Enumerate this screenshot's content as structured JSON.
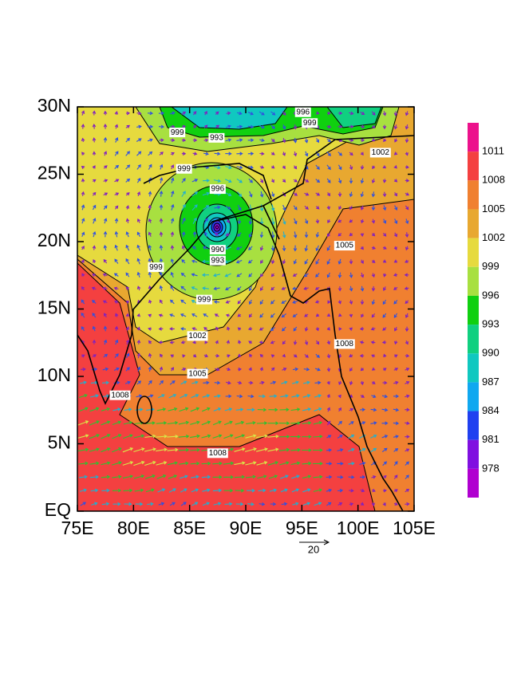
{
  "map": {
    "xlim": [
      75,
      105
    ],
    "ylim": [
      0,
      30
    ],
    "xticks": [
      {
        "value": 75,
        "label": "75E"
      },
      {
        "value": 80,
        "label": "80E"
      },
      {
        "value": 85,
        "label": "85E"
      },
      {
        "value": 90,
        "label": "90E"
      },
      {
        "value": 95,
        "label": "95E"
      },
      {
        "value": 100,
        "label": "100E"
      },
      {
        "value": 105,
        "label": "105E"
      }
    ],
    "yticks": [
      {
        "value": 0,
        "label": "EQ"
      },
      {
        "value": 5,
        "label": "5N"
      },
      {
        "value": 10,
        "label": "10N"
      },
      {
        "value": 15,
        "label": "15N"
      },
      {
        "value": 20,
        "label": "20N"
      },
      {
        "value": 25,
        "label": "25N"
      },
      {
        "value": 30,
        "label": "30N"
      }
    ],
    "colorbar": {
      "levels": [
        1011,
        1008,
        1005,
        1002,
        999,
        996,
        993,
        990,
        987,
        984,
        981,
        978
      ],
      "colors": [
        "#ec128c",
        "#f44040",
        "#f08030",
        "#e8a830",
        "#e6da3e",
        "#a8e040",
        "#10d010",
        "#10d080",
        "#10c8c0",
        "#10a8f0",
        "#2040f0",
        "#8010e0",
        "#b000d0"
      ]
    },
    "contour_labels": [
      {
        "value": 996,
        "lon": 95.1,
        "lat": 29.6
      },
      {
        "value": 999,
        "lon": 95.7,
        "lat": 28.8
      },
      {
        "value": 999,
        "lon": 83.9,
        "lat": 28.1
      },
      {
        "value": 993,
        "lon": 87.4,
        "lat": 27.7
      },
      {
        "value": 999,
        "lon": 84.5,
        "lat": 25.4
      },
      {
        "value": 1002,
        "lon": 102.0,
        "lat": 26.6
      },
      {
        "value": 996,
        "lon": 87.5,
        "lat": 23.9
      },
      {
        "value": 990,
        "lon": 87.5,
        "lat": 19.4
      },
      {
        "value": 993,
        "lon": 87.5,
        "lat": 18.6
      },
      {
        "value": 999,
        "lon": 82.0,
        "lat": 18.1
      },
      {
        "value": 1005,
        "lon": 98.8,
        "lat": 19.7
      },
      {
        "value": 999,
        "lon": 86.3,
        "lat": 15.7
      },
      {
        "value": 1002,
        "lon": 85.7,
        "lat": 13.0
      },
      {
        "value": 1008,
        "lon": 98.8,
        "lat": 12.4
      },
      {
        "value": 1005,
        "lon": 85.7,
        "lat": 10.2
      },
      {
        "value": 1008,
        "lon": 78.8,
        "lat": 8.6
      },
      {
        "value": 1008,
        "lon": 87.5,
        "lat": 4.3
      }
    ],
    "reference_vector": 20
  }
}
